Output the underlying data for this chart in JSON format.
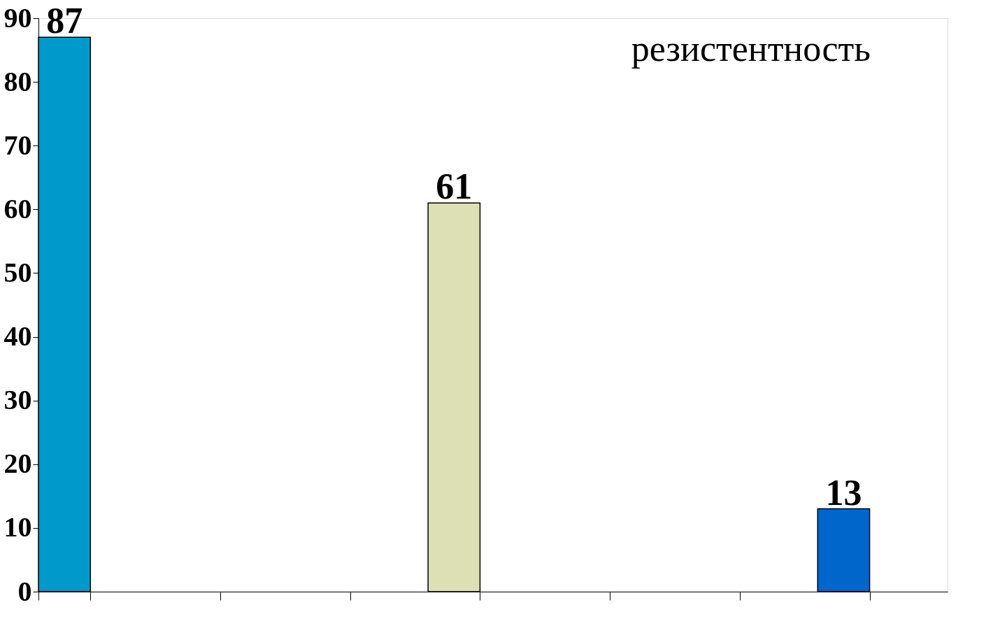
{
  "chart_data": {
    "type": "bar",
    "categories": [
      null,
      null,
      null,
      null,
      null,
      null,
      null
    ],
    "values": [
      87,
      null,
      null,
      61,
      null,
      null,
      13
    ],
    "colors": [
      "#0099cc",
      null,
      null,
      "#dddfb4",
      null,
      null,
      "#0066cc"
    ],
    "ylim": [
      0,
      90
    ],
    "yticks": [
      0,
      10,
      20,
      30,
      40,
      50,
      60,
      70,
      80,
      90
    ],
    "data_labels": true,
    "grid": false,
    "tick_labels": "y",
    "annotations": [
      "резистентность"
    ]
  }
}
